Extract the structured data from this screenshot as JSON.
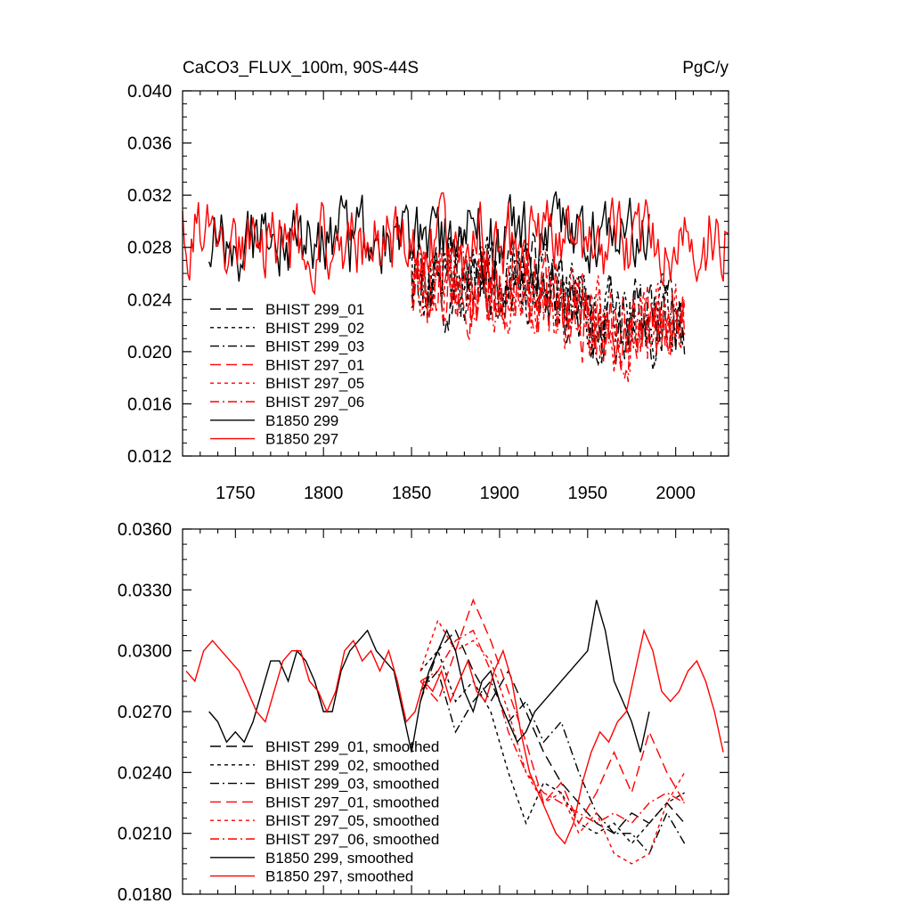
{
  "chart_data": [
    {
      "type": "line",
      "title": "CaCO3_FLUX_100m, 90S-44S",
      "units": "PgC/y",
      "xlim": [
        1720,
        2030
      ],
      "ylim": [
        0.012,
        0.04
      ],
      "xticks": [
        1750,
        1800,
        1850,
        1900,
        1950,
        2000
      ],
      "yticks": [
        0.012,
        0.016,
        0.02,
        0.024,
        0.028,
        0.032,
        0.036,
        0.04
      ],
      "ytick_labels": [
        "0.012",
        "0.016",
        "0.020",
        "0.024",
        "0.028",
        "0.032",
        "0.036",
        "0.040"
      ],
      "xtick_labels": [
        "1750",
        "1800",
        "1850",
        "1900",
        "1950",
        "2000"
      ],
      "legend_position": "lower-left",
      "series": [
        {
          "name": "BHIST 299_01",
          "color": "#000000",
          "dash": "long-dash",
          "x_range": [
            1850,
            2005
          ],
          "mean": 0.0255,
          "amp": 0.0048,
          "seed": 11
        },
        {
          "name": "BHIST 299_02",
          "color": "#000000",
          "dash": "short-dash",
          "x_range": [
            1850,
            2005
          ],
          "mean": 0.0255,
          "amp": 0.0048,
          "seed": 12
        },
        {
          "name": "BHIST 299_03",
          "color": "#000000",
          "dash": "dash-dot",
          "x_range": [
            1850,
            2005
          ],
          "mean": 0.0255,
          "amp": 0.0048,
          "seed": 13
        },
        {
          "name": "BHIST 297_01",
          "color": "#ff0000",
          "dash": "long-dash",
          "x_range": [
            1850,
            2005
          ],
          "mean": 0.025,
          "amp": 0.0052,
          "seed": 21
        },
        {
          "name": "BHIST 297_05",
          "color": "#ff0000",
          "dash": "short-dash",
          "x_range": [
            1850,
            2005
          ],
          "mean": 0.025,
          "amp": 0.0052,
          "seed": 22
        },
        {
          "name": "BHIST 297_06",
          "color": "#ff0000",
          "dash": "dash-dot",
          "x_range": [
            1850,
            2005
          ],
          "mean": 0.025,
          "amp": 0.0052,
          "seed": 23
        },
        {
          "name": "B1850 299",
          "color": "#000000",
          "dash": "solid",
          "x_range": [
            1735,
            1985
          ],
          "mean": 0.0285,
          "amp": 0.0045,
          "seed": 31
        },
        {
          "name": "B1850 297",
          "color": "#ff0000",
          "dash": "solid",
          "x_range": [
            1720,
            2030
          ],
          "mean": 0.0285,
          "amp": 0.0045,
          "seed": 41
        }
      ]
    },
    {
      "type": "line",
      "xlim": [
        1720,
        2030
      ],
      "ylim": [
        0.018,
        0.036
      ],
      "xticks": [
        1750,
        1800,
        1850,
        1900,
        1950,
        2000
      ],
      "yticks": [
        0.018,
        0.021,
        0.024,
        0.027,
        0.03,
        0.033,
        0.036
      ],
      "ytick_labels": [
        "0.0180",
        "0.0210",
        "0.0240",
        "0.0270",
        "0.0300",
        "0.0330",
        "0.0360"
      ],
      "legend_position": "lower-left",
      "series": [
        {
          "name": "BHIST 299_01, smoothed",
          "color": "#000000",
          "dash": "long-dash",
          "x": [
            1855,
            1865,
            1875,
            1885,
            1895,
            1905,
            1915,
            1925,
            1935,
            1945,
            1955,
            1965,
            1975,
            1985,
            1995,
            2005
          ],
          "y": [
            0.0275,
            0.03,
            0.031,
            0.029,
            0.0275,
            0.029,
            0.027,
            0.025,
            0.0235,
            0.0225,
            0.0215,
            0.021,
            0.022,
            0.0215,
            0.0225,
            0.0215
          ]
        },
        {
          "name": "BHIST 299_02, smoothed",
          "color": "#000000",
          "dash": "short-dash",
          "x": [
            1855,
            1865,
            1875,
            1885,
            1895,
            1905,
            1915,
            1925,
            1935,
            1945,
            1955,
            1965,
            1975,
            1985,
            1995,
            2005
          ],
          "y": [
            0.029,
            0.03,
            0.0275,
            0.0285,
            0.027,
            0.024,
            0.0215,
            0.0235,
            0.023,
            0.0215,
            0.021,
            0.0215,
            0.0205,
            0.0215,
            0.0225,
            0.023
          ]
        },
        {
          "name": "BHIST 299_03, smoothed",
          "color": "#000000",
          "dash": "dash-dot",
          "x": [
            1855,
            1865,
            1875,
            1885,
            1895,
            1905,
            1915,
            1925,
            1935,
            1945,
            1955,
            1965,
            1975,
            1985,
            1995,
            2005
          ],
          "y": [
            0.028,
            0.029,
            0.026,
            0.0275,
            0.0285,
            0.0265,
            0.0275,
            0.0255,
            0.0265,
            0.024,
            0.022,
            0.021,
            0.021,
            0.02,
            0.022,
            0.0205
          ]
        },
        {
          "name": "BHIST 297_01, smoothed",
          "color": "#ff0000",
          "dash": "long-dash",
          "x": [
            1855,
            1865,
            1875,
            1885,
            1895,
            1905,
            1915,
            1925,
            1935,
            1945,
            1955,
            1965,
            1975,
            1985,
            1995,
            2005
          ],
          "y": [
            0.0285,
            0.0275,
            0.03,
            0.0325,
            0.0305,
            0.028,
            0.0255,
            0.0225,
            0.0235,
            0.0215,
            0.023,
            0.025,
            0.023,
            0.026,
            0.024,
            0.0225
          ]
        },
        {
          "name": "BHIST 297_05, smoothed",
          "color": "#ff0000",
          "dash": "short-dash",
          "x": [
            1855,
            1865,
            1875,
            1885,
            1895,
            1905,
            1915,
            1925,
            1935,
            1945,
            1955,
            1965,
            1975,
            1985,
            1995,
            2005
          ],
          "y": [
            0.029,
            0.0315,
            0.03,
            0.0305,
            0.0295,
            0.027,
            0.024,
            0.0225,
            0.023,
            0.021,
            0.022,
            0.02,
            0.0195,
            0.02,
            0.0225,
            0.024
          ]
        },
        {
          "name": "BHIST 297_06, smoothed",
          "color": "#ff0000",
          "dash": "dash-dot",
          "x": [
            1855,
            1865,
            1875,
            1885,
            1895,
            1905,
            1915,
            1925,
            1935,
            1945,
            1955,
            1965,
            1975,
            1985,
            1995,
            2005
          ],
          "y": [
            0.0285,
            0.029,
            0.0305,
            0.031,
            0.029,
            0.026,
            0.024,
            0.023,
            0.0225,
            0.022,
            0.0215,
            0.022,
            0.0215,
            0.0225,
            0.023,
            0.0225
          ]
        },
        {
          "name": "B1850 299, smoothed",
          "color": "#000000",
          "dash": "solid",
          "x": [
            1735,
            1740,
            1745,
            1750,
            1755,
            1760,
            1765,
            1770,
            1775,
            1780,
            1785,
            1790,
            1795,
            1800,
            1805,
            1810,
            1815,
            1820,
            1825,
            1830,
            1835,
            1840,
            1845,
            1850,
            1855,
            1860,
            1865,
            1870,
            1875,
            1880,
            1885,
            1890,
            1895,
            1900,
            1905,
            1910,
            1915,
            1920,
            1925,
            1930,
            1935,
            1940,
            1945,
            1950,
            1955,
            1960,
            1965,
            1970,
            1975,
            1980,
            1985
          ],
          "y": [
            0.027,
            0.0265,
            0.0255,
            0.026,
            0.0255,
            0.0265,
            0.028,
            0.0295,
            0.0295,
            0.0285,
            0.03,
            0.0295,
            0.0285,
            0.027,
            0.027,
            0.029,
            0.03,
            0.0305,
            0.031,
            0.03,
            0.0295,
            0.029,
            0.027,
            0.025,
            0.0275,
            0.029,
            0.03,
            0.031,
            0.03,
            0.028,
            0.027,
            0.0285,
            0.029,
            0.0275,
            0.0265,
            0.0255,
            0.026,
            0.027,
            0.0275,
            0.028,
            0.0285,
            0.029,
            0.0295,
            0.03,
            0.0325,
            0.031,
            0.0285,
            0.0275,
            0.0265,
            0.025,
            0.027
          ]
        },
        {
          "name": "B1850 297, smoothed",
          "color": "#ff0000",
          "dash": "solid",
          "x": [
            1722,
            1727,
            1732,
            1737,
            1742,
            1747,
            1752,
            1757,
            1762,
            1767,
            1772,
            1777,
            1782,
            1787,
            1792,
            1797,
            1802,
            1807,
            1812,
            1817,
            1822,
            1827,
            1832,
            1837,
            1842,
            1847,
            1852,
            1857,
            1862,
            1867,
            1872,
            1877,
            1882,
            1887,
            1892,
            1897,
            1902,
            1907,
            1912,
            1917,
            1922,
            1927,
            1932,
            1937,
            1942,
            1947,
            1952,
            1957,
            1962,
            1967,
            1972,
            1977,
            1982,
            1987,
            1992,
            1997,
            2002,
            2007,
            2012,
            2017,
            2022,
            2027
          ],
          "y": [
            0.029,
            0.0285,
            0.03,
            0.0305,
            0.03,
            0.0295,
            0.029,
            0.028,
            0.027,
            0.0265,
            0.028,
            0.0295,
            0.03,
            0.03,
            0.0285,
            0.028,
            0.027,
            0.028,
            0.03,
            0.0305,
            0.0295,
            0.03,
            0.029,
            0.03,
            0.0285,
            0.0265,
            0.027,
            0.0285,
            0.028,
            0.029,
            0.0275,
            0.0285,
            0.0295,
            0.028,
            0.0275,
            0.029,
            0.03,
            0.0285,
            0.026,
            0.024,
            0.023,
            0.022,
            0.021,
            0.0205,
            0.0215,
            0.0235,
            0.025,
            0.026,
            0.0255,
            0.0265,
            0.027,
            0.029,
            0.031,
            0.03,
            0.028,
            0.0275,
            0.028,
            0.029,
            0.0295,
            0.0285,
            0.027,
            0.025
          ]
        }
      ]
    }
  ]
}
